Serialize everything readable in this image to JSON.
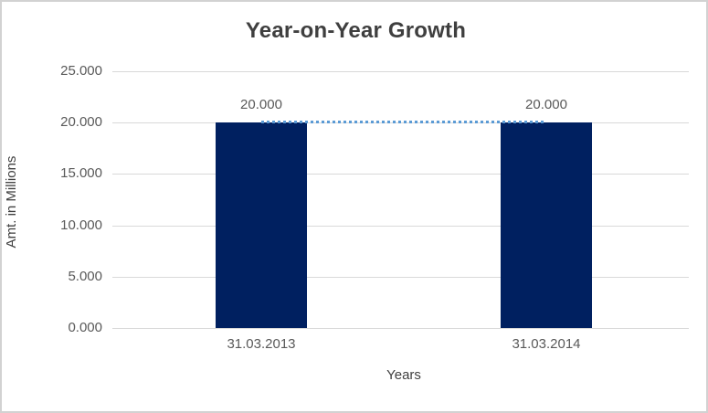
{
  "chart_data": {
    "type": "bar",
    "title": "Year-on-Year Growth",
    "xlabel": "Years",
    "ylabel": "Amt. in Millions",
    "categories": [
      "31.03.2013",
      "31.03.2014"
    ],
    "values": [
      20.0,
      20.0
    ],
    "data_labels": [
      "20.000",
      "20.000"
    ],
    "yticks": [
      0,
      5,
      10,
      15,
      20,
      25
    ],
    "ytick_labels": [
      "0.000",
      "5.000",
      "10.000",
      "15.000",
      "20.000",
      "25.000"
    ],
    "ylim": [
      0,
      25
    ],
    "grid": true,
    "legend": false,
    "bar_color": "#002060",
    "gridline_color": "#d9d9d9",
    "text_color": "#595959",
    "title_color": "#3f3f3f",
    "trendline": {
      "style": "dotted",
      "color": "#5b9bd5",
      "start_value": 20.0,
      "end_value": 20.0
    }
  }
}
